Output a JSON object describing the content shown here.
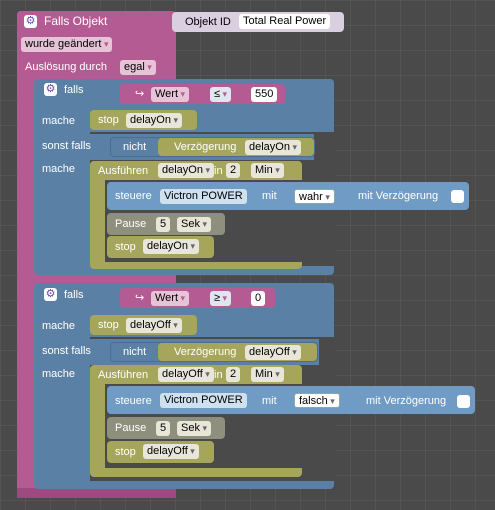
{
  "trigger": {
    "title": "Falls Objekt",
    "object_id_label": "Objekt ID",
    "object_id_value": "Total Real Power",
    "condition": "wurde geändert",
    "trigger_by_label": "Auslösung durch",
    "trigger_by_value": "egal"
  },
  "if_blocks": [
    {
      "if_label": "falls",
      "var": "Wert",
      "operator": "≤",
      "number": "550",
      "do_label": "mache",
      "stop_label": "stop",
      "stop_target": "delayOn",
      "elseif_label": "sonst falls",
      "not_label": "nicht",
      "delay_label": "Verzögerung",
      "delay_target": "delayOn",
      "do2_label": "mache",
      "exec_label": "Ausführen",
      "exec_target": "delayOn",
      "in_label": "in",
      "in_value": "2",
      "unit": "Min",
      "control_label": "steuere",
      "control_device": "Victron POWER",
      "with_label": "mit",
      "control_value": "wahr",
      "with_delay_label": "mit Verzögerung",
      "pause_label": "Pause",
      "pause_value": "5",
      "pause_unit": "Sek",
      "stop2_label": "stop",
      "stop2_target": "delayOn"
    },
    {
      "if_label": "falls",
      "var": "Wert",
      "operator": "≥",
      "number": "0",
      "do_label": "mache",
      "stop_label": "stop",
      "stop_target": "delayOff",
      "elseif_label": "sonst falls",
      "not_label": "nicht",
      "delay_label": "Verzögerung",
      "delay_target": "delayOff",
      "do2_label": "mache",
      "exec_label": "Ausführen",
      "exec_target": "delayOff",
      "in_label": "in",
      "in_value": "2",
      "unit": "Min",
      "control_label": "steuere",
      "control_device": "Victron POWER",
      "with_label": "mit",
      "control_value": "falsch",
      "with_delay_label": "mit Verzögerung",
      "pause_label": "Pause",
      "pause_value": "5",
      "pause_unit": "Sek",
      "stop2_label": "stop",
      "stop2_target": "delayOff"
    }
  ],
  "colors": {
    "trigger": "#b55b94",
    "logic": "#5b80a5",
    "timer": "#a5a55b",
    "control": "#6f9bc4",
    "pause": "#8f8f7e",
    "background": "#4a4a4a"
  }
}
